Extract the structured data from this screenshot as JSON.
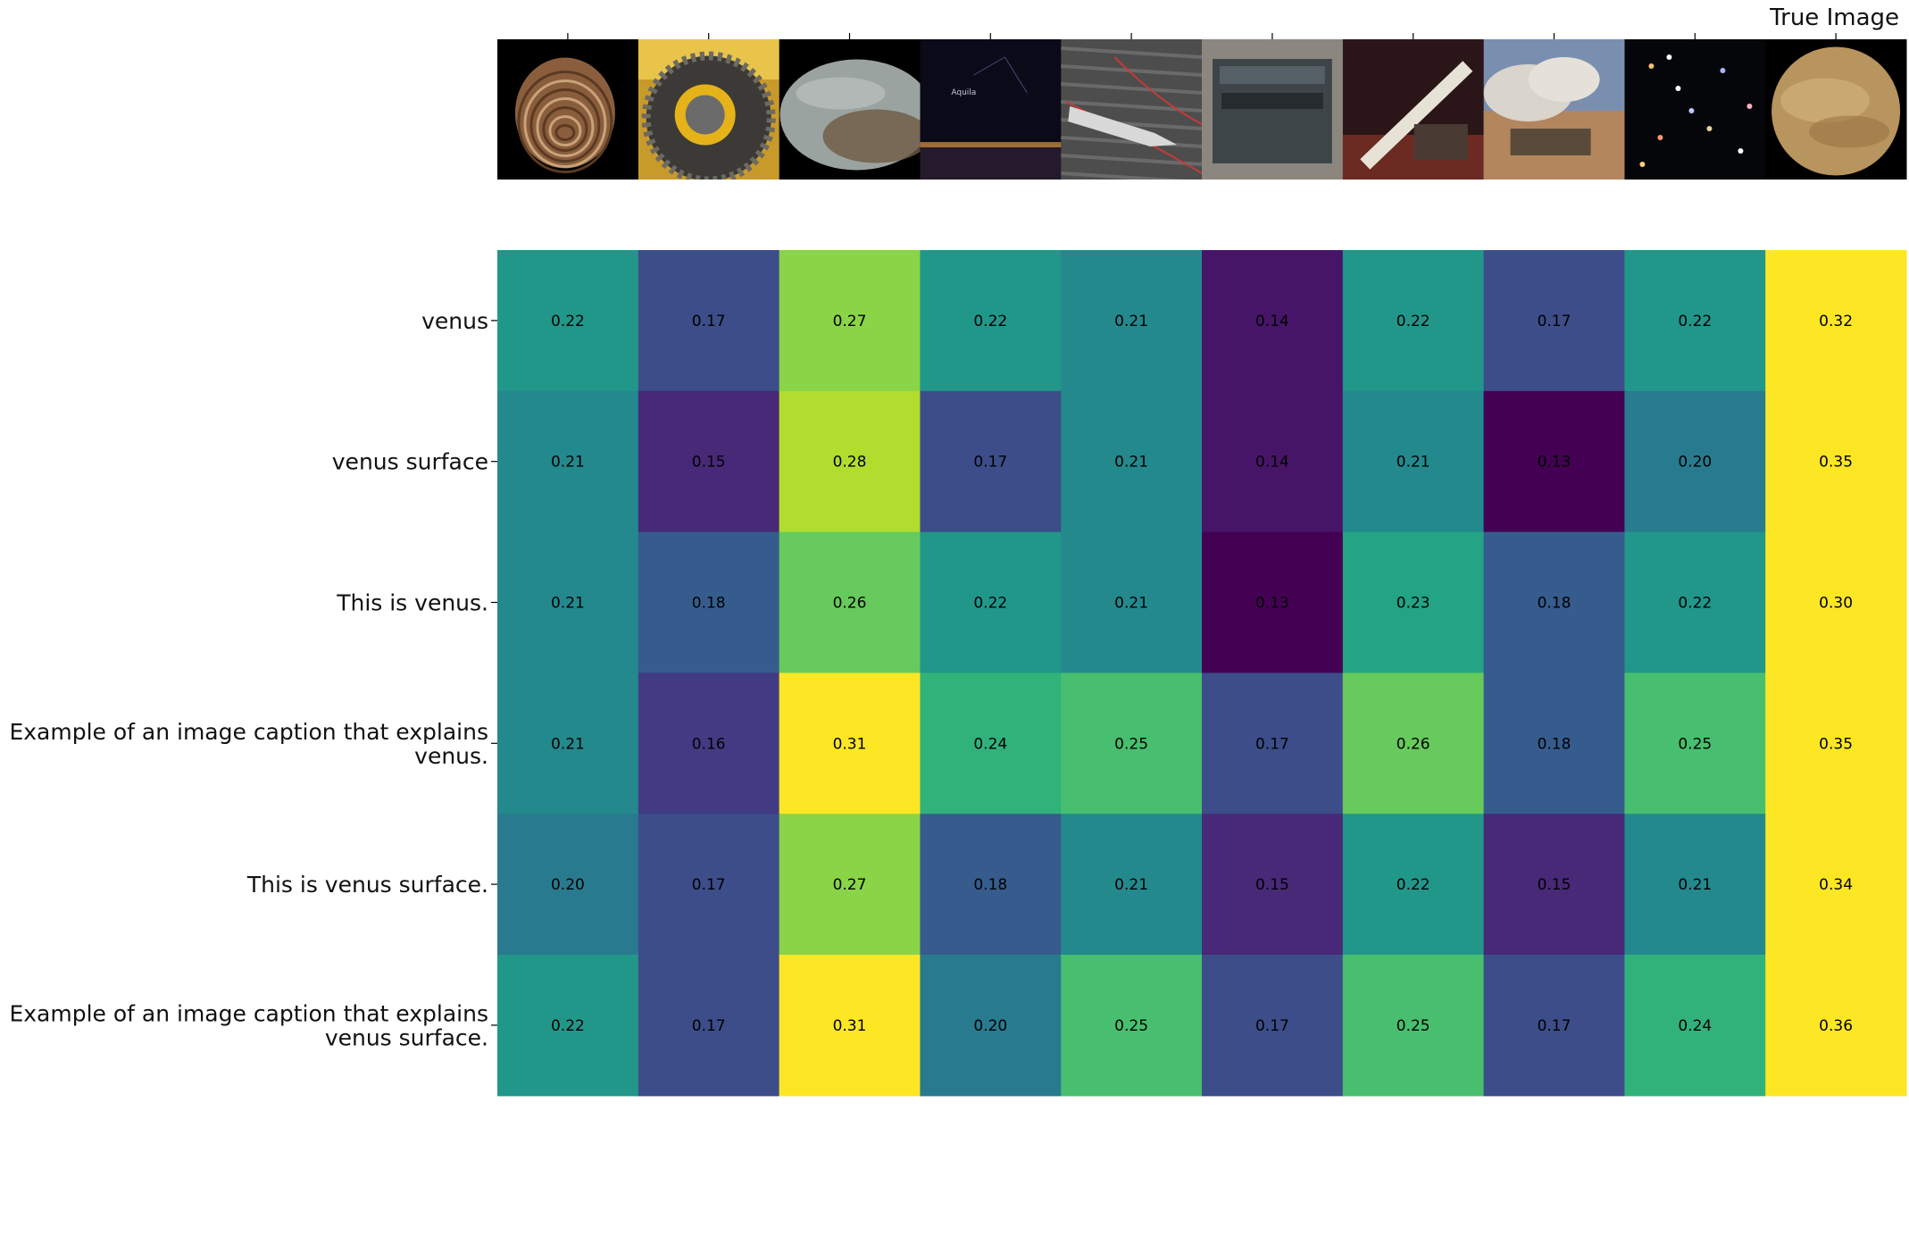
{
  "chart_data": {
    "type": "heatmap",
    "title": "",
    "x_top_label": "True Image",
    "row_labels": [
      "venus",
      "venus surface",
      "This is venus.",
      "Example of an image caption that explains venus.",
      "This is venus surface.",
      "Example of an image caption that explains venus surface."
    ],
    "columns": [
      {
        "image": "seashell"
      },
      {
        "image": "chained-tire"
      },
      {
        "image": "moon-crescent"
      },
      {
        "image": "night-sky-constellation"
      },
      {
        "image": "ship-wake"
      },
      {
        "image": "metal-plaque"
      },
      {
        "image": "telescope"
      },
      {
        "image": "artillery-smoke"
      },
      {
        "image": "galaxy-field"
      },
      {
        "image": "venus-planet"
      }
    ],
    "values": [
      [
        0.22,
        0.17,
        0.27,
        0.22,
        0.21,
        0.14,
        0.22,
        0.17,
        0.22,
        0.32
      ],
      [
        0.21,
        0.15,
        0.28,
        0.17,
        0.21,
        0.14,
        0.21,
        0.13,
        0.2,
        0.35
      ],
      [
        0.21,
        0.18,
        0.26,
        0.22,
        0.21,
        0.13,
        0.23,
        0.18,
        0.22,
        0.3
      ],
      [
        0.21,
        0.16,
        0.31,
        0.24,
        0.25,
        0.17,
        0.26,
        0.18,
        0.25,
        0.35
      ],
      [
        0.2,
        0.17,
        0.27,
        0.18,
        0.21,
        0.15,
        0.22,
        0.15,
        0.21,
        0.34
      ],
      [
        0.22,
        0.17,
        0.31,
        0.2,
        0.25,
        0.17,
        0.25,
        0.17,
        0.24,
        0.36
      ]
    ],
    "value_format": "2 decimals",
    "colormap": "viridis",
    "color_range": [
      0.13,
      0.3
    ],
    "grid": false,
    "legend": "none"
  }
}
